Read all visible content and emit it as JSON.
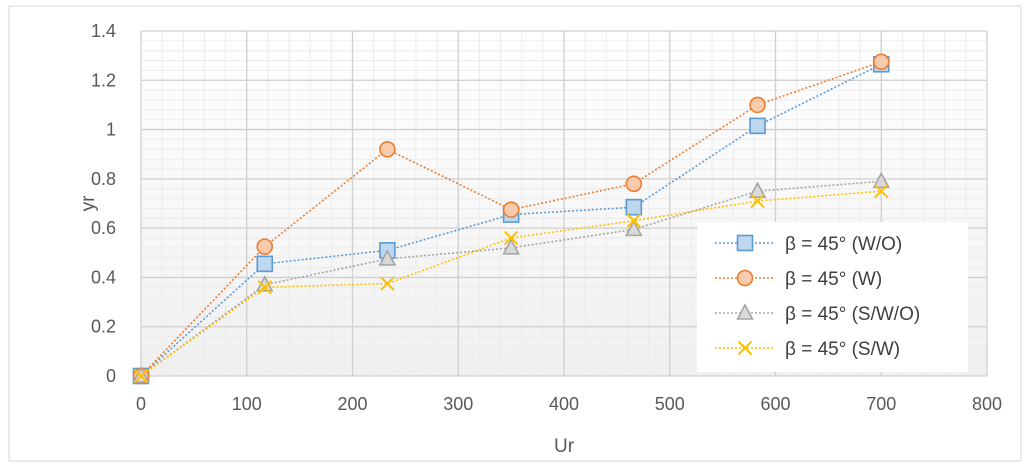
{
  "chart_data": {
    "type": "line",
    "title": "",
    "xlabel": "Ur",
    "ylabel": "yr",
    "xlim": [
      0,
      800
    ],
    "ylim": [
      0,
      1.4
    ],
    "x_ticks": [
      0,
      100,
      200,
      300,
      400,
      500,
      600,
      700,
      800
    ],
    "x_tick_labels": [
      "0",
      "100",
      "200",
      "300",
      "400",
      "500",
      "600",
      "700",
      "800"
    ],
    "y_ticks": [
      0,
      0.2,
      0.4,
      0.6,
      0.8,
      1,
      1.2,
      1.4
    ],
    "y_tick_labels": [
      "0",
      "0.2",
      "0.4",
      "0.6",
      "0.8",
      "1",
      "1.2",
      "1.4"
    ],
    "grid": true,
    "legend_position": "bottom-right",
    "series": [
      {
        "name": "β = 45° (W/O)",
        "marker": "square",
        "color": "#5b9bd5",
        "fill": "#bdd7ee",
        "x": [
          0,
          117,
          233,
          350,
          466,
          583,
          700
        ],
        "y": [
          0,
          0.455,
          0.51,
          0.655,
          0.685,
          1.015,
          1.265
        ]
      },
      {
        "name": "β = 45° (W)",
        "marker": "circle",
        "color": "#ed7d31",
        "fill": "#f8cbad",
        "x": [
          0,
          117,
          233,
          350,
          466,
          583,
          700
        ],
        "y": [
          0,
          0.525,
          0.92,
          0.675,
          0.78,
          1.1,
          1.275
        ]
      },
      {
        "name": "β = 45° (S/W/O)",
        "marker": "triangle",
        "color": "#a5a5a5",
        "fill": "#d9d9d9",
        "x": [
          0,
          117,
          233,
          350,
          466,
          583,
          700
        ],
        "y": [
          0,
          0.37,
          0.475,
          0.52,
          0.595,
          0.75,
          0.79
        ]
      },
      {
        "name": "β = 45° (S/W)",
        "marker": "x",
        "color": "#ffc000",
        "fill": "#ffc000",
        "x": [
          0,
          117,
          233,
          350,
          466,
          583,
          700
        ],
        "y": [
          0,
          0.36,
          0.375,
          0.56,
          0.63,
          0.71,
          0.75
        ]
      }
    ]
  }
}
